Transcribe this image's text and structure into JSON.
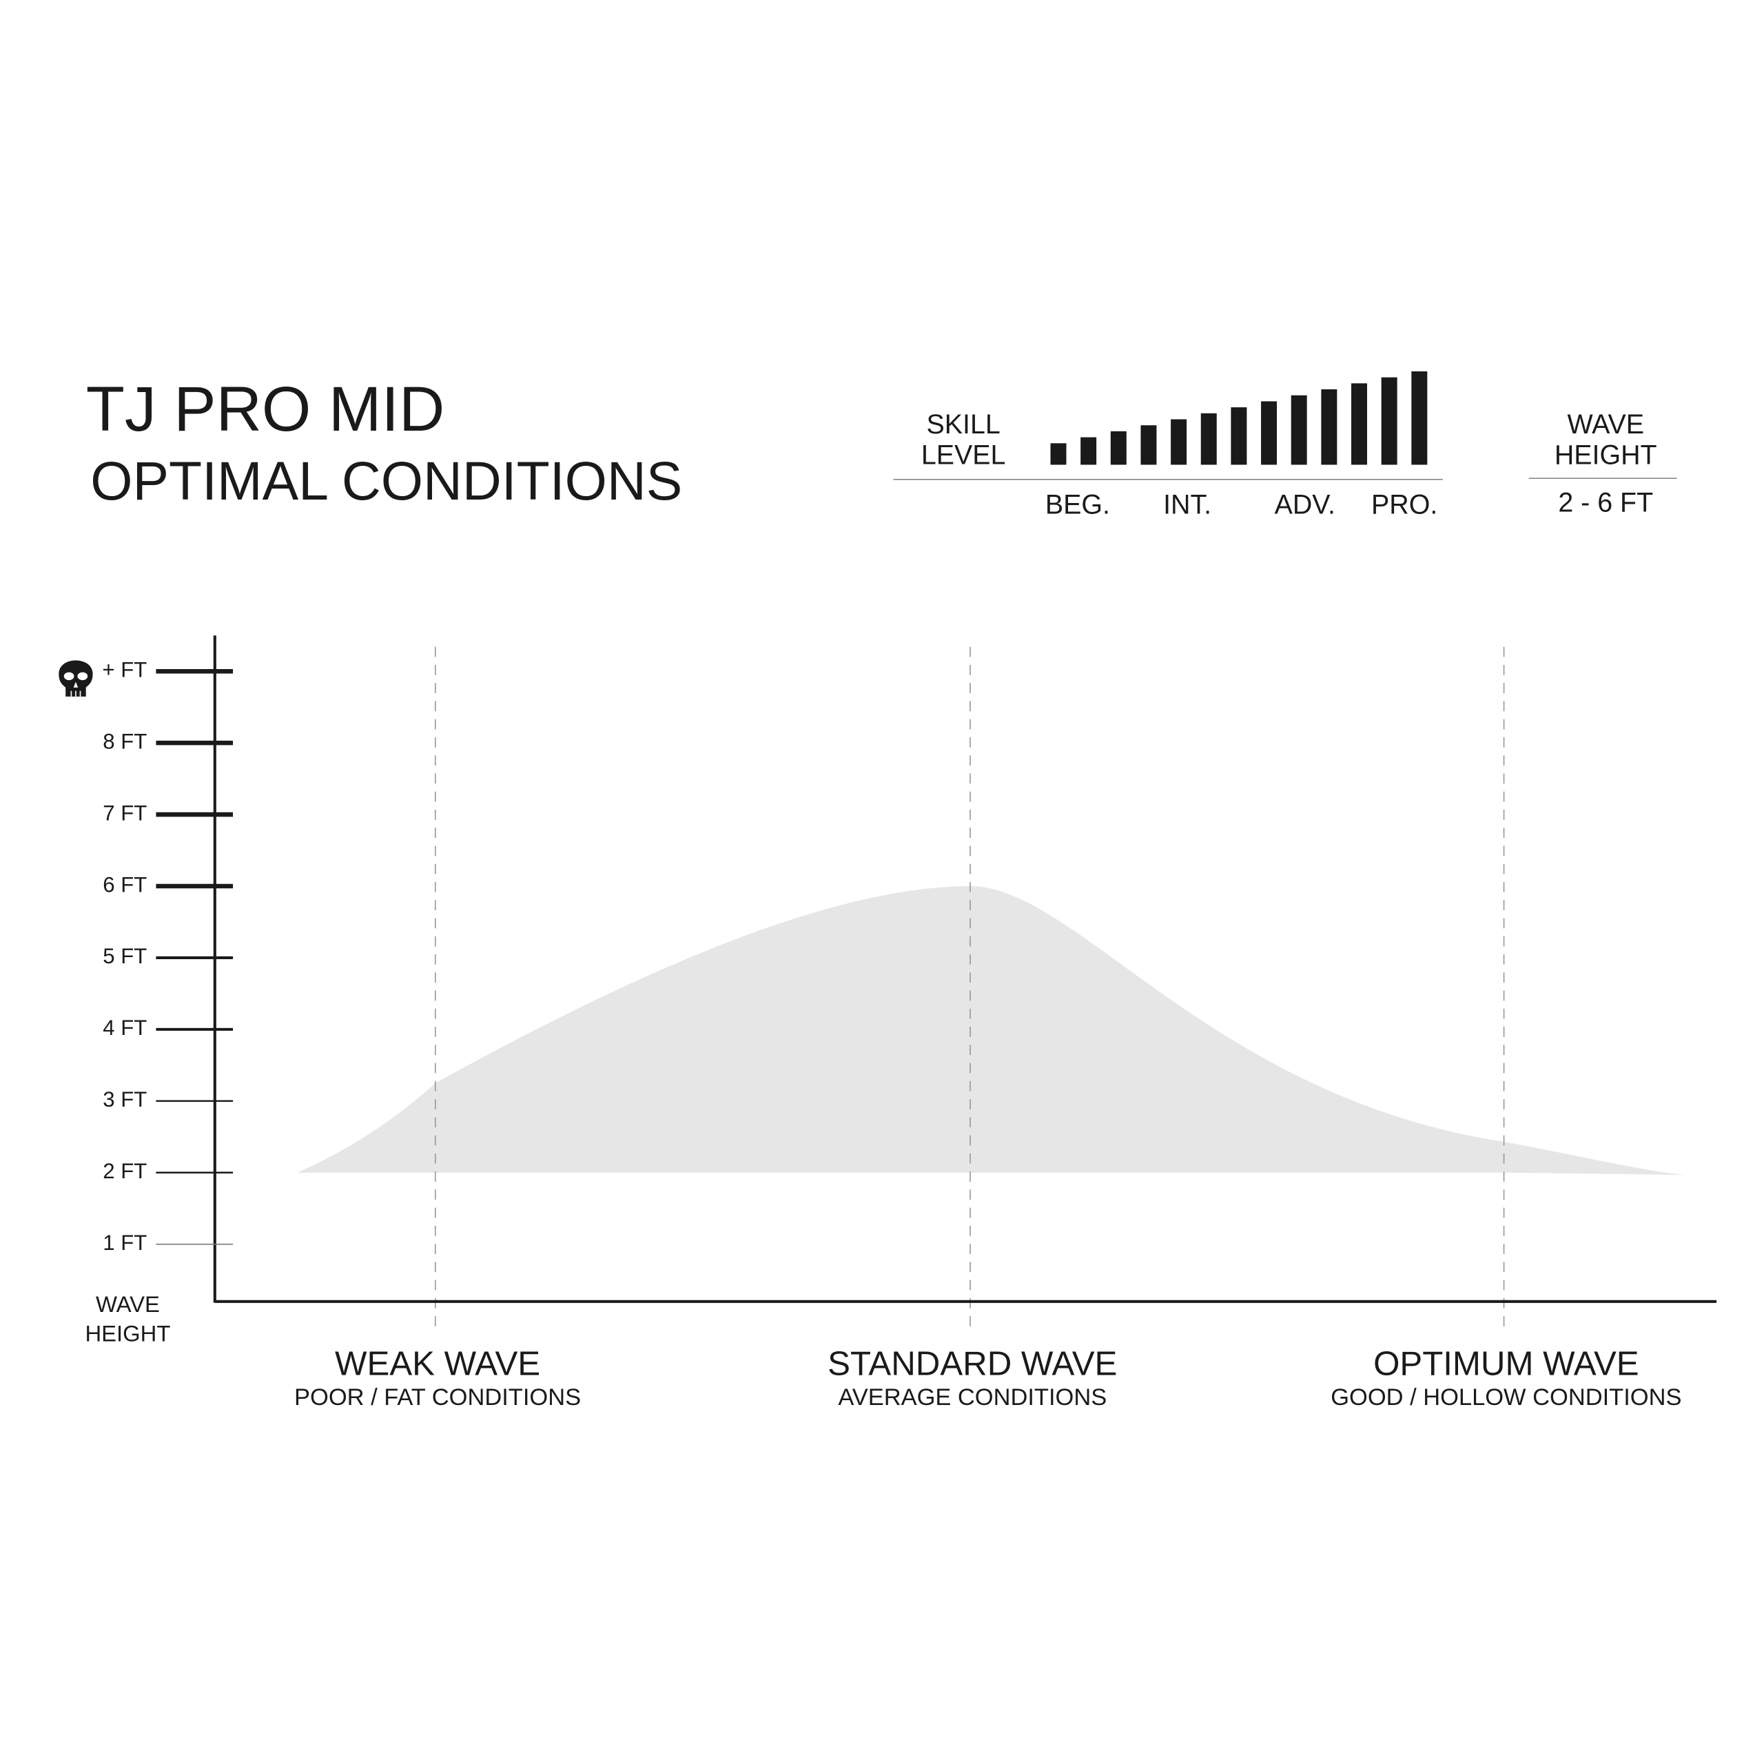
{
  "header": {
    "title": "TJ PRO MID",
    "subtitle": "OPTIMAL CONDITIONS"
  },
  "skill": {
    "label": [
      "SKILL",
      "LEVEL"
    ],
    "levels": [
      "BEG.",
      "INT.",
      "ADV.",
      "PRO."
    ]
  },
  "wave_height": {
    "label": [
      "WAVE",
      "HEIGHT"
    ],
    "range": "2 - 6 FT"
  },
  "chart_data": {
    "type": "area",
    "y_label": [
      "WAVE",
      "HEIGHT"
    ],
    "categories": [
      "WEAK WAVE",
      "STANDARD WAVE",
      "OPTIMUM WAVE"
    ],
    "category_notes": [
      "POOR / FAT CONDITIONS",
      "AVERAGE CONDITIONS",
      "GOOD / HOLLOW CONDITIONS"
    ],
    "values": [
      3.25,
      6.0,
      2.43
    ],
    "lower": [
      2,
      2,
      2
    ],
    "color": "#e6e6e6",
    "ylim": [
      0.2,
      9.5
    ],
    "yticks": [
      {
        "value": 1,
        "label": "1 FT"
      },
      {
        "value": 2,
        "label": "2 FT"
      },
      {
        "value": 3,
        "label": "3 FT"
      },
      {
        "value": 4,
        "label": "4 FT"
      },
      {
        "value": 5,
        "label": "5 FT"
      },
      {
        "value": 6,
        "label": "6 FT"
      },
      {
        "value": 7,
        "label": "7 FT"
      },
      {
        "value": 8,
        "label": "8 FT"
      },
      {
        "value": 9,
        "label": "+ FT"
      }
    ]
  }
}
